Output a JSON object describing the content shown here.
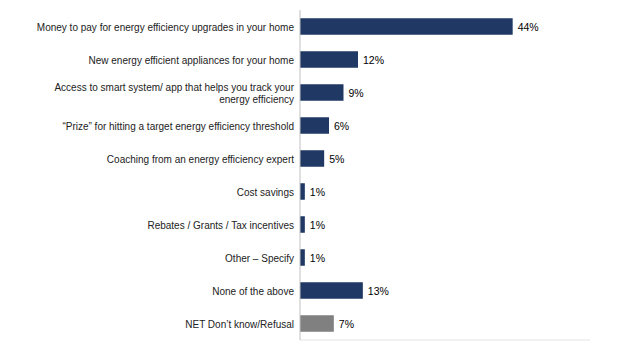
{
  "chart_data": {
    "type": "bar",
    "orientation": "horizontal",
    "categories": [
      "NET Don’t know/Refusal",
      "None of the above",
      "Other – Specify",
      "Rebates / Grants / Tax incentives",
      "Cost savings",
      "Coaching from an energy efficiency expert",
      "“Prize” for hitting a target energy efficiency threshold",
      "Access to smart system/ app that helps you track your\nenergy efficiency",
      "New energy efficient appliances for your home",
      "Money to pay for energy efficiency upgrades in your home"
    ],
    "values": [
      7,
      13,
      1,
      1,
      1,
      5,
      6,
      9,
      12,
      44
    ],
    "value_labels": [
      "7%",
      "13%",
      "1%",
      "1%",
      "1%",
      "5%",
      "6%",
      "9%",
      "12%",
      "44%"
    ],
    "colors": [
      "#808080",
      "#1f3864",
      "#1f3864",
      "#1f3864",
      "#1f3864",
      "#1f3864",
      "#1f3864",
      "#1f3864",
      "#1f3864",
      "#1f3864"
    ],
    "xlim": [
      0,
      60
    ],
    "data_labels": true,
    "tick_labels": "y",
    "grid": false
  }
}
